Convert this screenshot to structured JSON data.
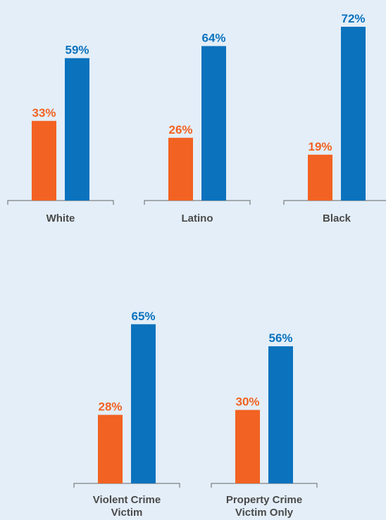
{
  "colors": {
    "background": "#e3eef8",
    "series_1": "#f26222",
    "series_2": "#0b72bd",
    "axis": "#666666",
    "category_text": "#4a4a4a"
  },
  "chart_data": [
    {
      "type": "bar",
      "categories": [
        [
          "White"
        ],
        [
          "Latino"
        ],
        [
          "Black"
        ]
      ],
      "series": [
        {
          "values": [
            33,
            26,
            19
          ],
          "labels": [
            "33%",
            "26%",
            "19%"
          ]
        },
        {
          "values": [
            59,
            64,
            72
          ],
          "labels": [
            "59%",
            "64%",
            "72%"
          ]
        }
      ],
      "ylim": [
        0,
        100
      ],
      "grid": false,
      "legend": "none"
    },
    {
      "type": "bar",
      "categories": [
        [
          "Violent Crime",
          "Victim"
        ],
        [
          "Property Crime",
          "Victim Only"
        ]
      ],
      "series": [
        {
          "values": [
            28,
            30
          ],
          "labels": [
            "28%",
            "30%"
          ]
        },
        {
          "values": [
            65,
            56
          ],
          "labels": [
            "65%",
            "56%"
          ]
        }
      ],
      "ylim": [
        0,
        100
      ],
      "grid": false,
      "legend": "none"
    }
  ]
}
